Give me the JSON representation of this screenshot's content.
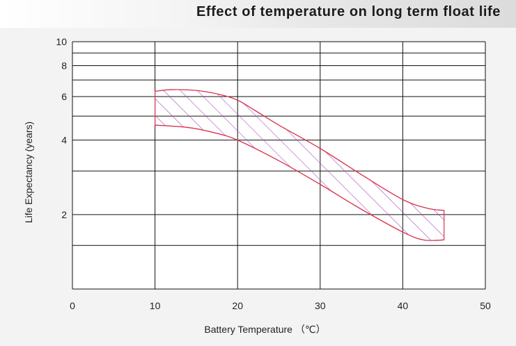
{
  "chart_data": {
    "type": "area",
    "title": "Effect of temperature on long term float life",
    "xlabel": "Battery Temperature （℃）",
    "ylabel": "Life Expectancy (years)",
    "xlim": [
      0,
      50
    ],
    "ylim": [
      1,
      10
    ],
    "y_scale": "log",
    "grid": true,
    "x_ticks": [
      0,
      10,
      20,
      30,
      40,
      50
    ],
    "y_gridlines": [
      1,
      1.5,
      2,
      3,
      4,
      5,
      6,
      7,
      8,
      9,
      10
    ],
    "y_tick_labels": [
      {
        "value": 2,
        "label": "2"
      },
      {
        "value": 4,
        "label": "4"
      },
      {
        "value": 6,
        "label": "6"
      },
      {
        "value": 8,
        "label": "8"
      },
      {
        "value": 10,
        "label": "10"
      }
    ],
    "band": {
      "upper": [
        {
          "x": 10,
          "y": 6.3
        },
        {
          "x": 12,
          "y": 6.4
        },
        {
          "x": 15,
          "y": 6.35
        },
        {
          "x": 18,
          "y": 6.1
        },
        {
          "x": 20,
          "y": 5.8
        },
        {
          "x": 22,
          "y": 5.3
        },
        {
          "x": 25,
          "y": 4.6
        },
        {
          "x": 30,
          "y": 3.7
        },
        {
          "x": 35,
          "y": 2.9
        },
        {
          "x": 40,
          "y": 2.3
        },
        {
          "x": 43,
          "y": 2.12
        },
        {
          "x": 45,
          "y": 2.08
        }
      ],
      "lower": [
        {
          "x": 10,
          "y": 4.6
        },
        {
          "x": 14,
          "y": 4.5
        },
        {
          "x": 17,
          "y": 4.3
        },
        {
          "x": 20,
          "y": 4.0
        },
        {
          "x": 25,
          "y": 3.3
        },
        {
          "x": 30,
          "y": 2.65
        },
        {
          "x": 35,
          "y": 2.1
        },
        {
          "x": 40,
          "y": 1.7
        },
        {
          "x": 42.5,
          "y": 1.58
        },
        {
          "x": 45,
          "y": 1.58
        }
      ],
      "stroke": "#d8364f",
      "hatch": "#a23bb4"
    }
  }
}
